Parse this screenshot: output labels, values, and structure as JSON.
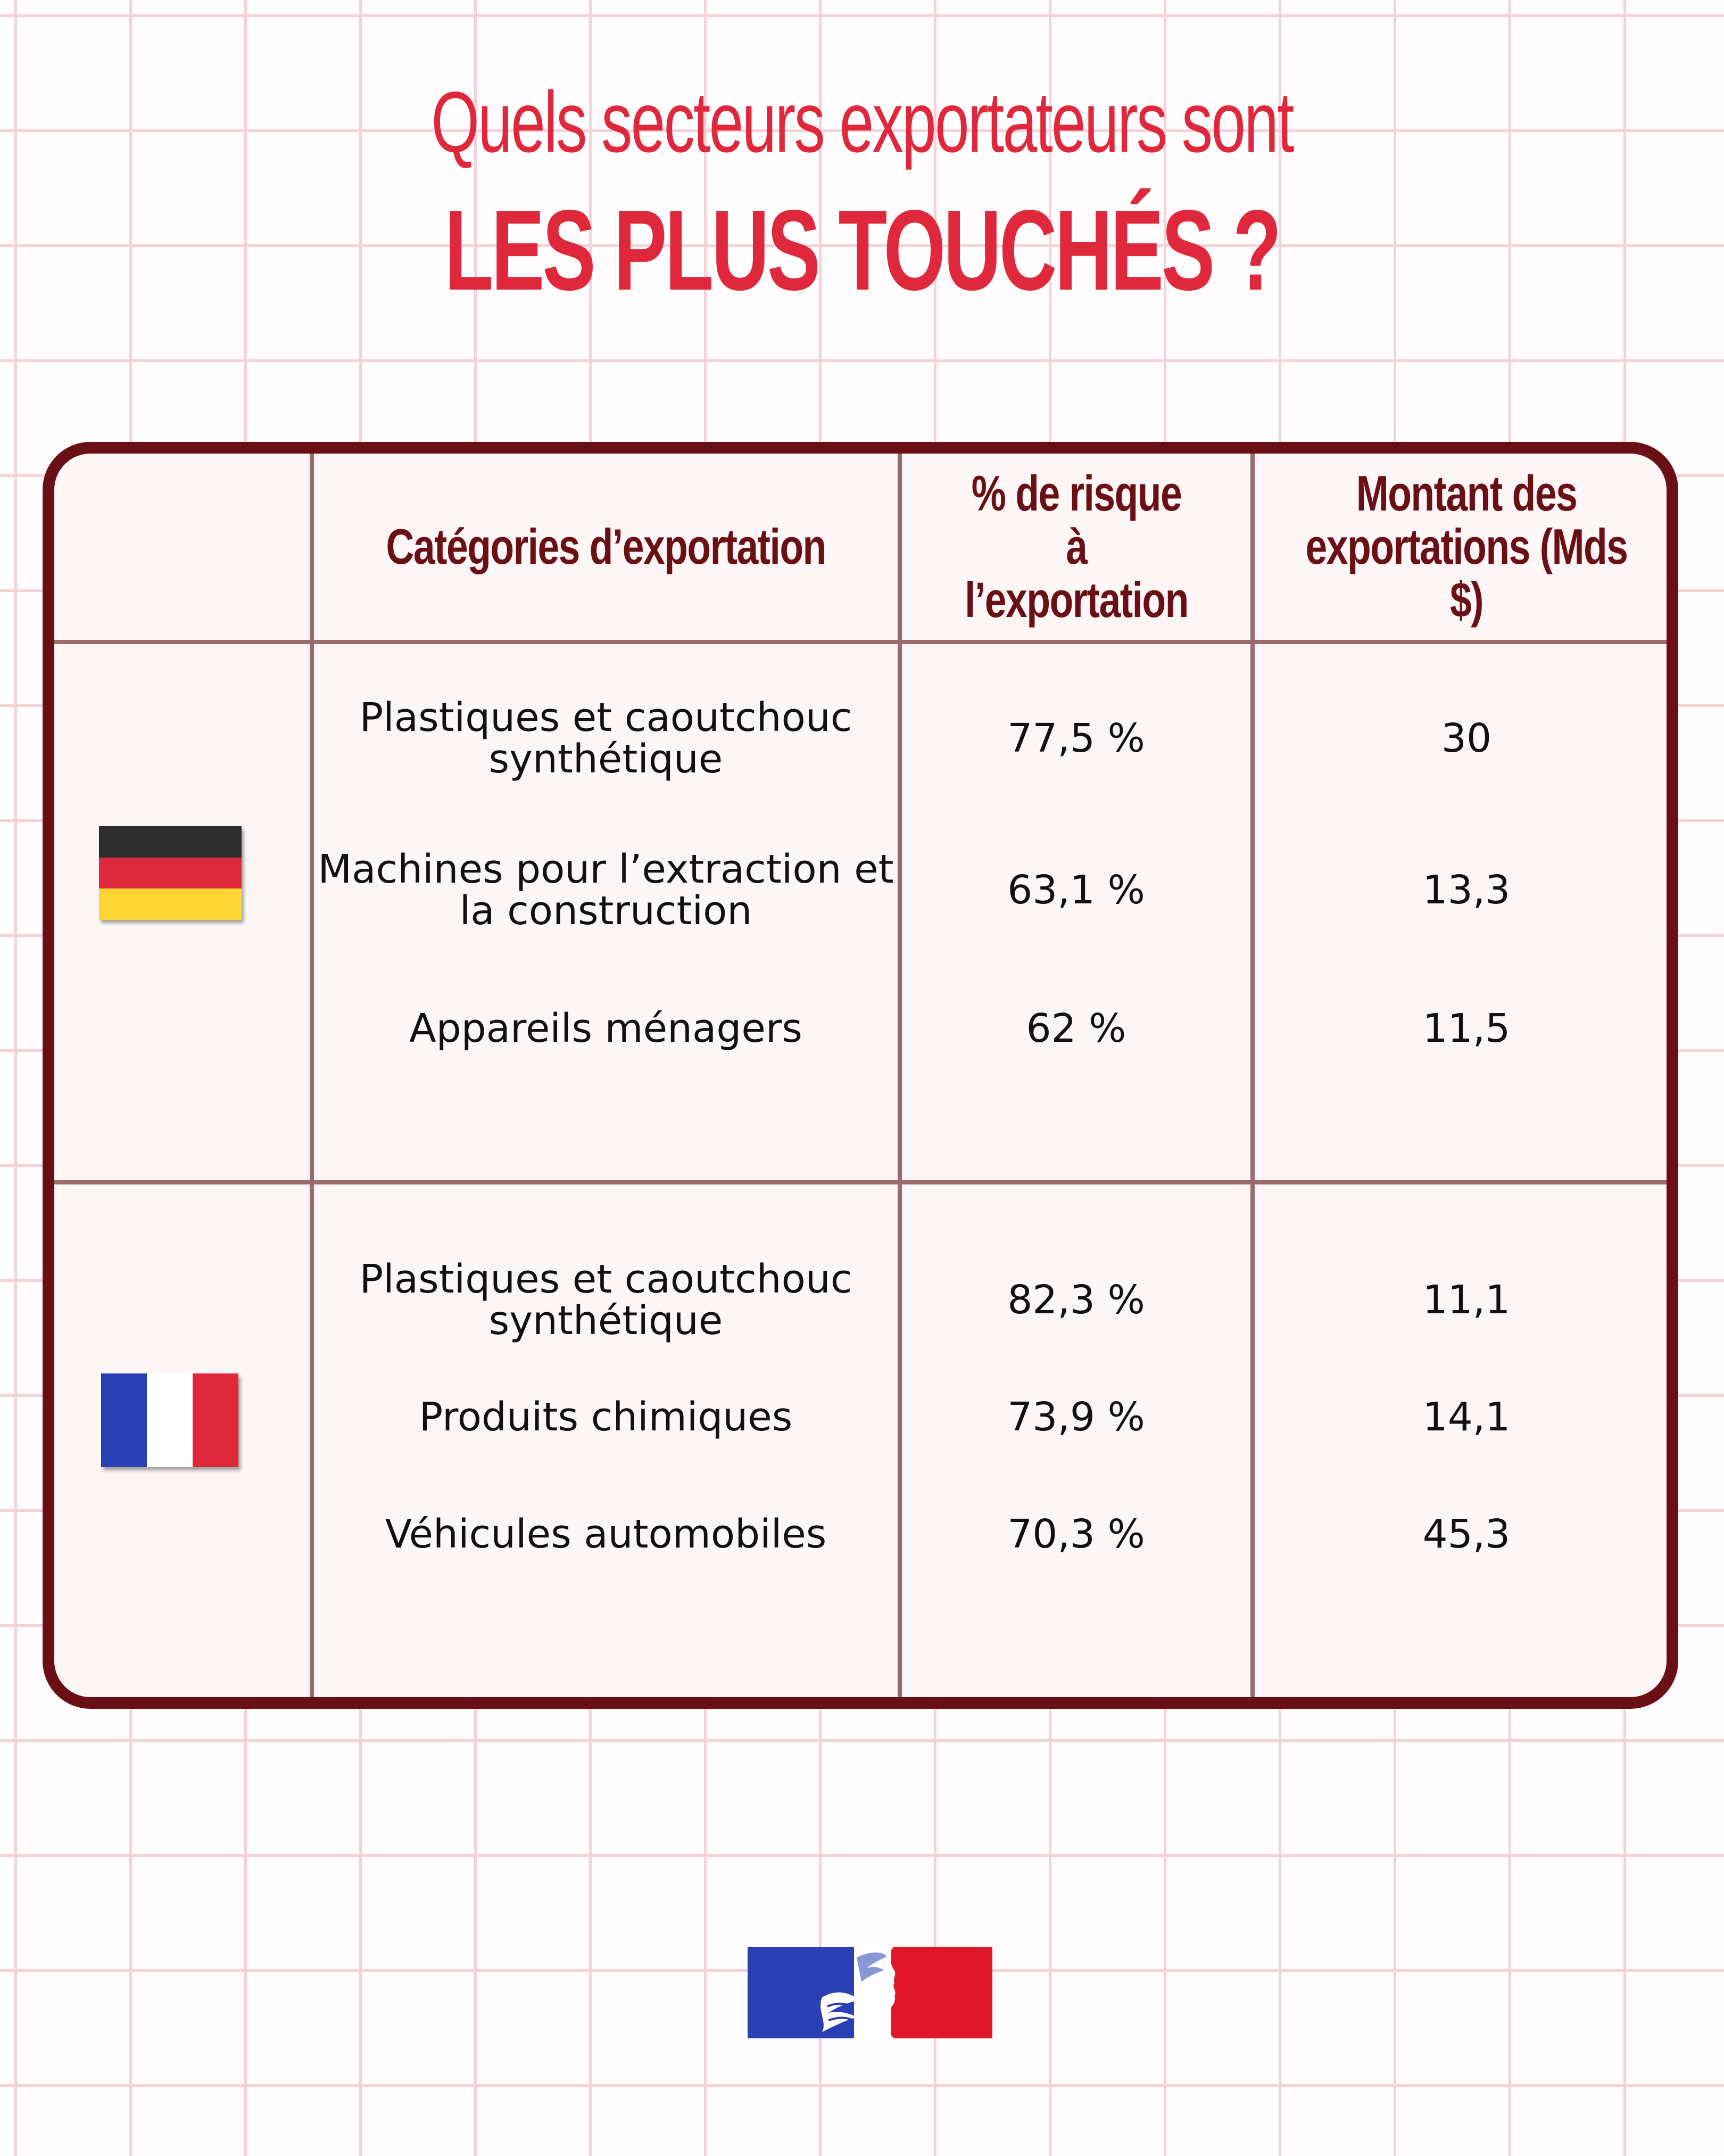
{
  "title": {
    "line1": "Quels secteurs exportateurs sont",
    "line2": "LES PLUS TOUCHÉS ?"
  },
  "table": {
    "headers": {
      "categories": "Catégories d’exportation",
      "risk": "% de risque à l’exportation",
      "amount": "Montant des exportations (Mds $)"
    },
    "groups": [
      {
        "flag": "germany-flag",
        "colors": [
          "#2e2e2e",
          "#e0283d",
          "#ffd633"
        ],
        "rows": [
          {
            "category": "Plastiques et caoutchouc synthétique",
            "risk": "77,5 %",
            "amount": "30"
          },
          {
            "category": "Machines pour l’extraction et la construction",
            "risk": "63,1 %",
            "amount": "13,3"
          },
          {
            "category": "Appareils ménagers",
            "risk": "62 %",
            "amount": "11,5"
          }
        ]
      },
      {
        "flag": "france-flag",
        "colors": [
          "#2a3fb3",
          "#ffffff",
          "#e0283d"
        ],
        "rows": [
          {
            "category": "Plastiques et caoutchouc synthétique",
            "risk": "82,3 %",
            "amount": "11,1"
          },
          {
            "category": "Produits chimiques",
            "risk": "73,9 %",
            "amount": "14,1"
          },
          {
            "category": "Véhicules automobiles",
            "risk": "70,3 %",
            "amount": "45,3"
          }
        ]
      }
    ]
  },
  "logo": "marianne-logo",
  "colors": {
    "accent": "#e0283d",
    "frame": "#6b0f16"
  }
}
